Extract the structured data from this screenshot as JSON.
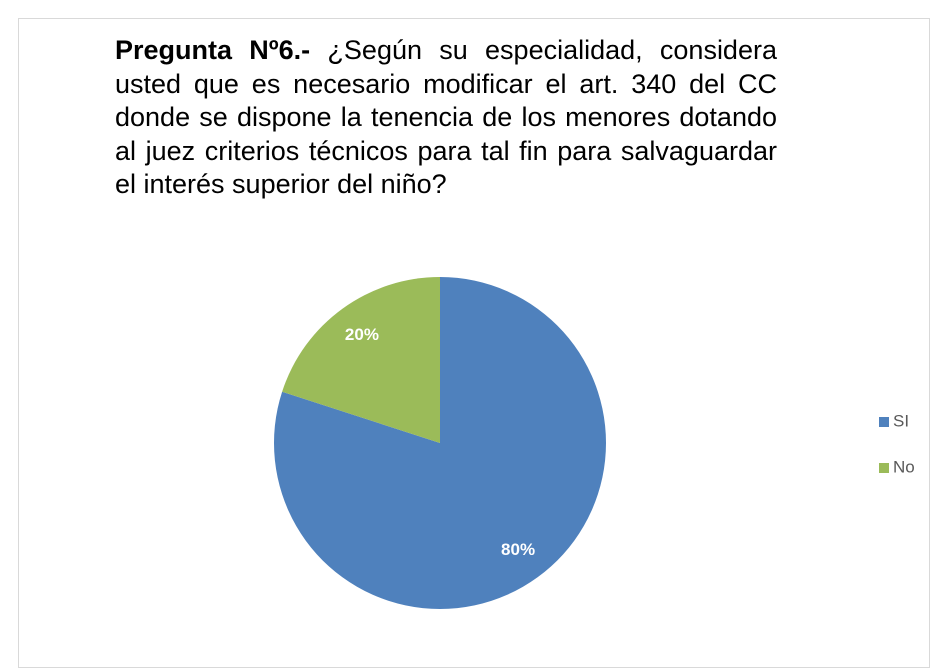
{
  "chart_data": {
    "type": "pie",
    "title": "Pregunta Nº6.-",
    "subtitle": "¿Según su especialidad, considera usted que es necesario modificar el art. 340 del CC donde se dispone la tenencia de los menores dotando al juez criterios técnicos para tal fin para salvaguardar el interés superior del niño?",
    "categories": [
      "SI",
      "No"
    ],
    "values": [
      80,
      20
    ],
    "value_labels": [
      "80%",
      "20%"
    ],
    "colors": [
      "#4f81bd",
      "#9bbb59"
    ],
    "legend": "right"
  }
}
